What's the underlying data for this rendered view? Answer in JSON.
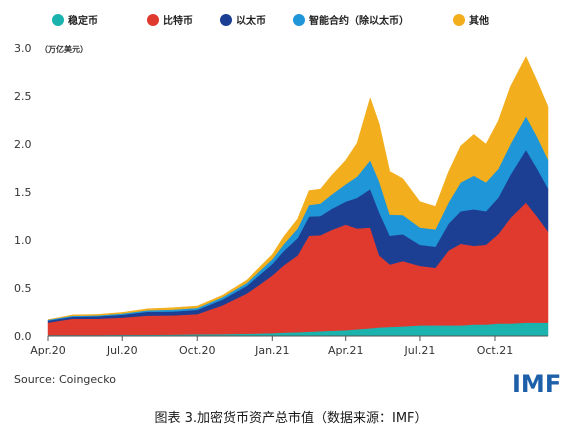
{
  "chart_data": {
    "type": "area",
    "stacked": true,
    "title": "",
    "ylabel": "（万亿美元）",
    "xlabel": "",
    "ylim": [
      0,
      3.0
    ],
    "yticks": [
      "0.0",
      "0.5",
      "1.0",
      "1.5",
      "2.0",
      "2.5",
      "3.0"
    ],
    "xticks": [
      "Apr.20",
      "Jul.20",
      "Oct.20",
      "Jan.21",
      "Apr.21",
      "Jul.21",
      "Oct.21"
    ],
    "x": [
      "2020-04-01",
      "2020-05-01",
      "2020-06-01",
      "2020-07-01",
      "2020-08-01",
      "2020-09-01",
      "2020-10-01",
      "2020-11-01",
      "2020-12-01",
      "2020-12-15",
      "2021-01-01",
      "2021-01-15",
      "2021-02-01",
      "2021-02-15",
      "2021-03-01",
      "2021-03-15",
      "2021-04-01",
      "2021-04-15",
      "2021-05-01",
      "2021-05-12",
      "2021-05-25",
      "2021-06-10",
      "2021-07-01",
      "2021-07-20",
      "2021-08-05",
      "2021-08-20",
      "2021-09-05",
      "2021-09-20",
      "2021-10-05",
      "2021-10-20",
      "2021-11-08",
      "2021-11-22",
      "2021-12-05"
    ],
    "series": [
      {
        "name": "稳定币",
        "color": "#1bb3ad",
        "values": [
          0.01,
          0.01,
          0.01,
          0.012,
          0.013,
          0.015,
          0.018,
          0.02,
          0.024,
          0.026,
          0.03,
          0.035,
          0.04,
          0.045,
          0.05,
          0.055,
          0.06,
          0.07,
          0.08,
          0.09,
          0.095,
          0.1,
          0.11,
          0.11,
          0.11,
          0.11,
          0.12,
          0.12,
          0.13,
          0.13,
          0.14,
          0.14,
          0.14
        ]
      },
      {
        "name": "比特币",
        "color": "#e03a2f",
        "values": [
          0.13,
          0.17,
          0.17,
          0.18,
          0.2,
          0.2,
          0.21,
          0.3,
          0.42,
          0.5,
          0.6,
          0.7,
          0.8,
          1.0,
          1.0,
          1.05,
          1.1,
          1.05,
          1.05,
          0.75,
          0.65,
          0.68,
          0.62,
          0.6,
          0.78,
          0.85,
          0.82,
          0.83,
          0.93,
          1.1,
          1.25,
          1.1,
          0.95
        ]
      },
      {
        "name": "以太币",
        "color": "#1c3f94",
        "values": [
          0.02,
          0.02,
          0.025,
          0.03,
          0.04,
          0.04,
          0.045,
          0.06,
          0.08,
          0.1,
          0.12,
          0.15,
          0.18,
          0.2,
          0.2,
          0.22,
          0.24,
          0.32,
          0.4,
          0.45,
          0.3,
          0.28,
          0.22,
          0.22,
          0.28,
          0.34,
          0.38,
          0.35,
          0.38,
          0.45,
          0.55,
          0.5,
          0.45
        ]
      },
      {
        "name": "智能合约（除以太币）",
        "color": "#1f96d8",
        "values": [
          0.01,
          0.01,
          0.01,
          0.012,
          0.015,
          0.02,
          0.02,
          0.025,
          0.03,
          0.04,
          0.05,
          0.07,
          0.1,
          0.12,
          0.13,
          0.15,
          0.18,
          0.22,
          0.3,
          0.32,
          0.22,
          0.2,
          0.18,
          0.18,
          0.22,
          0.3,
          0.35,
          0.3,
          0.3,
          0.32,
          0.35,
          0.33,
          0.3
        ]
      },
      {
        "name": "其他",
        "color": "#f2ae1c",
        "values": [
          0.0,
          0.01,
          0.01,
          0.012,
          0.015,
          0.02,
          0.02,
          0.02,
          0.03,
          0.04,
          0.05,
          0.08,
          0.1,
          0.15,
          0.15,
          0.2,
          0.25,
          0.35,
          0.65,
          0.6,
          0.45,
          0.38,
          0.27,
          0.24,
          0.32,
          0.38,
          0.43,
          0.4,
          0.5,
          0.6,
          0.62,
          0.58,
          0.55
        ]
      }
    ]
  },
  "legend_position": "top",
  "source_text": "Source: Coingecko",
  "brand": "IMF",
  "caption": "图表 3.加密货币资产总市值（数据来源：IMF）"
}
